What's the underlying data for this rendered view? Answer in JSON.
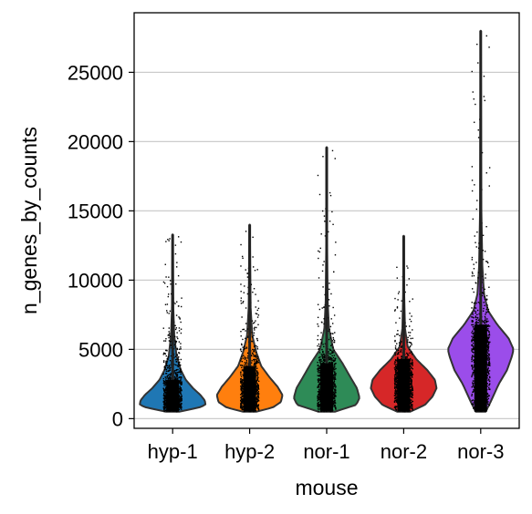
{
  "chart_data": {
    "type": "violin",
    "title": "",
    "xlabel": "mouse",
    "ylabel": "n_genes_by_counts",
    "ylim": [
      -700,
      29300
    ],
    "yticks": [
      0,
      5000,
      10000,
      15000,
      20000,
      25000
    ],
    "grid": "horizontal",
    "legend": "none",
    "categories": [
      "hyp-1",
      "hyp-2",
      "nor-1",
      "nor-2",
      "nor-3"
    ],
    "colors": [
      "#1f77b4",
      "#ff7f0e",
      "#2e8b57",
      "#d62728",
      "#9b4dea"
    ],
    "series": [
      {
        "min": 500,
        "max": 13300,
        "profile": [
          [
            500,
            0.2
          ],
          [
            800,
            0.8
          ],
          [
            1000,
            1.0
          ],
          [
            1300,
            0.98
          ],
          [
            1700,
            0.85
          ],
          [
            2200,
            0.62
          ],
          [
            2800,
            0.4
          ],
          [
            3500,
            0.25
          ],
          [
            4500,
            0.12
          ],
          [
            6000,
            0.05
          ],
          [
            8000,
            0.02
          ],
          [
            13300,
            0.005
          ]
        ]
      },
      {
        "min": 500,
        "max": 14000,
        "profile": [
          [
            500,
            0.2
          ],
          [
            800,
            0.7
          ],
          [
            1200,
            0.95
          ],
          [
            1700,
            1.0
          ],
          [
            2300,
            0.85
          ],
          [
            3000,
            0.6
          ],
          [
            3800,
            0.35
          ],
          [
            4800,
            0.2
          ],
          [
            6000,
            0.08
          ],
          [
            8000,
            0.03
          ],
          [
            14000,
            0.005
          ]
        ]
      },
      {
        "min": 500,
        "max": 19600,
        "profile": [
          [
            500,
            0.25
          ],
          [
            1000,
            0.9
          ],
          [
            1500,
            1.0
          ],
          [
            2200,
            0.92
          ],
          [
            3000,
            0.72
          ],
          [
            4000,
            0.48
          ],
          [
            5000,
            0.2
          ],
          [
            6500,
            0.07
          ],
          [
            8500,
            0.03
          ],
          [
            12000,
            0.015
          ],
          [
            19600,
            0.005
          ]
        ]
      },
      {
        "min": 500,
        "max": 13200,
        "profile": [
          [
            500,
            0.2
          ],
          [
            1000,
            0.65
          ],
          [
            1600,
            0.88
          ],
          [
            2200,
            1.0
          ],
          [
            2800,
            0.95
          ],
          [
            3500,
            0.72
          ],
          [
            4300,
            0.38
          ],
          [
            5200,
            0.12
          ],
          [
            6500,
            0.04
          ],
          [
            9000,
            0.015
          ],
          [
            13200,
            0.005
          ]
        ]
      },
      {
        "min": 500,
        "max": 28000,
        "profile": [
          [
            500,
            0.15
          ],
          [
            1200,
            0.3
          ],
          [
            2500,
            0.55
          ],
          [
            3500,
            0.8
          ],
          [
            4500,
            0.95
          ],
          [
            5000,
            1.0
          ],
          [
            5800,
            0.85
          ],
          [
            6800,
            0.5
          ],
          [
            7800,
            0.22
          ],
          [
            9000,
            0.1
          ],
          [
            11000,
            0.05
          ],
          [
            15000,
            0.02
          ],
          [
            22000,
            0.01
          ],
          [
            28000,
            0.005
          ]
        ]
      }
    ]
  }
}
